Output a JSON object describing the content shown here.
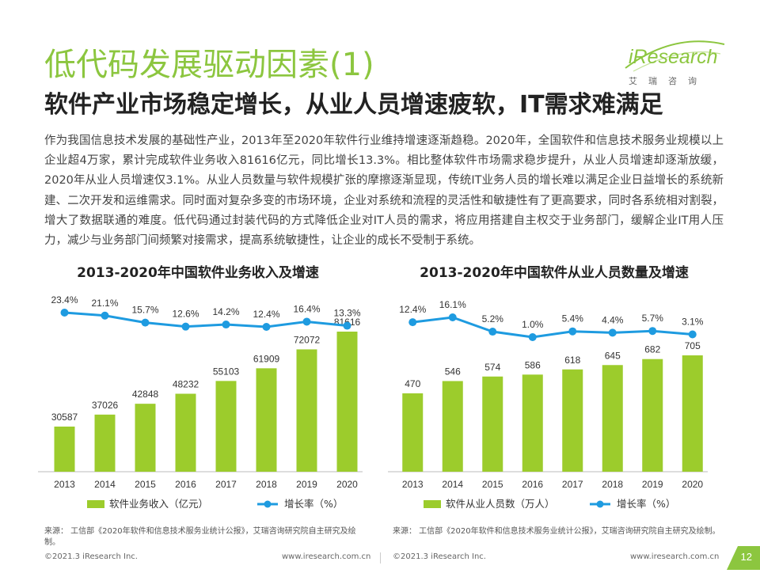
{
  "header": {
    "title": "低代码发展驱动因素(1)",
    "subtitle": "软件产业市场稳定增长，从业人员增速疲软，IT需求难满足"
  },
  "logo": {
    "word": "iResearch",
    "cn": "艾瑞咨询"
  },
  "body_text": "作为我国信息技术发展的基础性产业，2013年至2020年软件行业维持增速逐渐趋稳。2020年，全国软件和信息技术服务业规模以上企业超4万家，累计完成软件业务收入81616亿元，同比增长13.3%。相比整体软件市场需求稳步提升，从业人员增速却逐渐放缓，2020年从业人员增速仅3.1%。从业人员数量与软件规模扩张的摩擦逐渐显现，传统IT业务人员的增长难以满足企业日益增长的系统新建、二次开发和运维需求。同时面对复杂多变的市场环境，企业对系统和流程的灵活性和敏捷性有了更高要求，同时各系统相对割裂，增大了数据联通的难度。低代码通过封装代码的方式降低企业对IT人员的需求，将应用搭建自主权交于业务部门，缓解企业IT用人压力，减少与业务部门间频繁对接需求，提高系统敏捷性，让企业的成长不受制于系统。",
  "chart_data": [
    {
      "type": "bar",
      "title": "2013-2020年中国软件业务收入及增速",
      "categories": [
        "2013",
        "2014",
        "2015",
        "2016",
        "2017",
        "2018",
        "2019",
        "2020"
      ],
      "series": [
        {
          "name": "软件业务收入（亿元）",
          "type": "bar",
          "values": [
            30587,
            37026,
            42848,
            48232,
            55103,
            61909,
            72072,
            81616
          ],
          "labels": [
            "30587",
            "37026",
            "42848",
            "48232",
            "55103",
            "61909",
            "72072",
            "81616"
          ],
          "color": "#9ccc2c"
        },
        {
          "name": "增长率（%）",
          "type": "line",
          "values": [
            23.4,
            21.1,
            15.7,
            12.6,
            14.2,
            12.4,
            16.4,
            13.3
          ],
          "labels": [
            "23.4%",
            "21.1%",
            "15.7%",
            "12.6%",
            "14.2%",
            "12.4%",
            "16.4%",
            "13.3%"
          ],
          "color": "#1e9be0"
        }
      ],
      "legend_position": "bottom"
    },
    {
      "type": "bar",
      "title": "2013-2020年中国软件从业人员数量及增速",
      "categories": [
        "2013",
        "2014",
        "2015",
        "2016",
        "2017",
        "2018",
        "2019",
        "2020"
      ],
      "series": [
        {
          "name": "软件从业人员数（万人）",
          "type": "bar",
          "values": [
            470,
            546,
            574,
            586,
            618,
            645,
            682,
            705
          ],
          "labels": [
            "470",
            "546",
            "574",
            "586",
            "618",
            "645",
            "682",
            "705"
          ],
          "color": "#9ccc2c"
        },
        {
          "name": "增长率（%）",
          "type": "line",
          "values": [
            12.4,
            16.1,
            5.2,
            1.0,
            5.4,
            4.4,
            5.7,
            3.1
          ],
          "labels": [
            "12.4%",
            "16.1%",
            "5.2%",
            "1.0%",
            "5.4%",
            "4.4%",
            "5.7%",
            "3.1%"
          ],
          "color": "#1e9be0"
        }
      ],
      "legend_position": "bottom"
    }
  ],
  "sources": {
    "left": "来源：  工信部《2020年软件和信息技术服务业统计公报》，艾瑞咨询研究院自主研究及绘制。",
    "right": "来源：  工信部《2020年软件和信息技术服务业统计公报》，艾瑞咨询研究院自主研究及绘制。"
  },
  "footer": {
    "copyright_left": "©2021.3 iResearch Inc.",
    "url_left": "www.iresearch.com.cn",
    "copyright_right": "©2021.3 iResearch Inc.",
    "url_right": "www.iresearch.com.cn",
    "page": "12"
  }
}
